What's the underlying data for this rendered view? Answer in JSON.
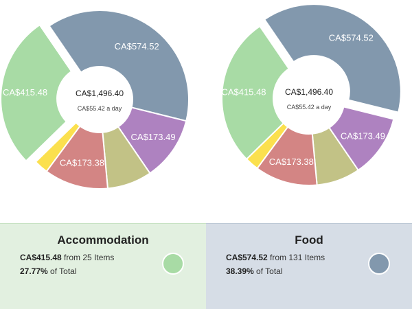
{
  "chart_data": [
    {
      "type": "pie",
      "donut": true,
      "exploded": "Accommodation",
      "center": {
        "total": "CA$1,496.40",
        "per_day": "CA$55.42 a day"
      },
      "slices": [
        {
          "name": "Food",
          "value": 574.52,
          "label": "CA$574.52",
          "color": "#8298ad"
        },
        {
          "name": "",
          "value": 173.49,
          "label": "CA$173.49",
          "color": "#ae82c0"
        },
        {
          "name": "",
          "value": 121.0,
          "label": "",
          "color": "#c2c286"
        },
        {
          "name": "",
          "value": 173.38,
          "label": "CA$173.38",
          "color": "#d38584"
        },
        {
          "name": "",
          "value": 38.5,
          "label": "",
          "color": "#fbe04e"
        },
        {
          "name": "Accommodation",
          "value": 415.48,
          "label": "CA$415.48",
          "color": "#a8dba5"
        }
      ]
    },
    {
      "type": "pie",
      "donut": true,
      "exploded": "Food",
      "center": {
        "total": "CA$1,496.40",
        "per_day": "CA$55.42 a day"
      },
      "slices": [
        {
          "name": "Food",
          "value": 574.52,
          "label": "CA$574.52",
          "color": "#8298ad"
        },
        {
          "name": "",
          "value": 173.49,
          "label": "CA$173.49",
          "color": "#ae82c0"
        },
        {
          "name": "",
          "value": 121.0,
          "label": "",
          "color": "#c2c286"
        },
        {
          "name": "",
          "value": 173.38,
          "label": "CA$173.38",
          "color": "#d38584"
        },
        {
          "name": "",
          "value": 38.5,
          "label": "",
          "color": "#fbe04e"
        },
        {
          "name": "Accommodation",
          "value": 415.48,
          "label": "CA$415.48",
          "color": "#a8dba5"
        }
      ]
    }
  ],
  "panels": [
    {
      "title": "Accommodation",
      "amount": "CA$415.48",
      "items_text": " from 25 Items",
      "percent": "27.77%",
      "percent_text": " of Total",
      "color": "#a8dba5"
    },
    {
      "title": "Food",
      "amount": "CA$574.52",
      "items_text": " from 131 Items",
      "percent": "38.39%",
      "percent_text": " of Total",
      "color": "#8298ad"
    }
  ]
}
